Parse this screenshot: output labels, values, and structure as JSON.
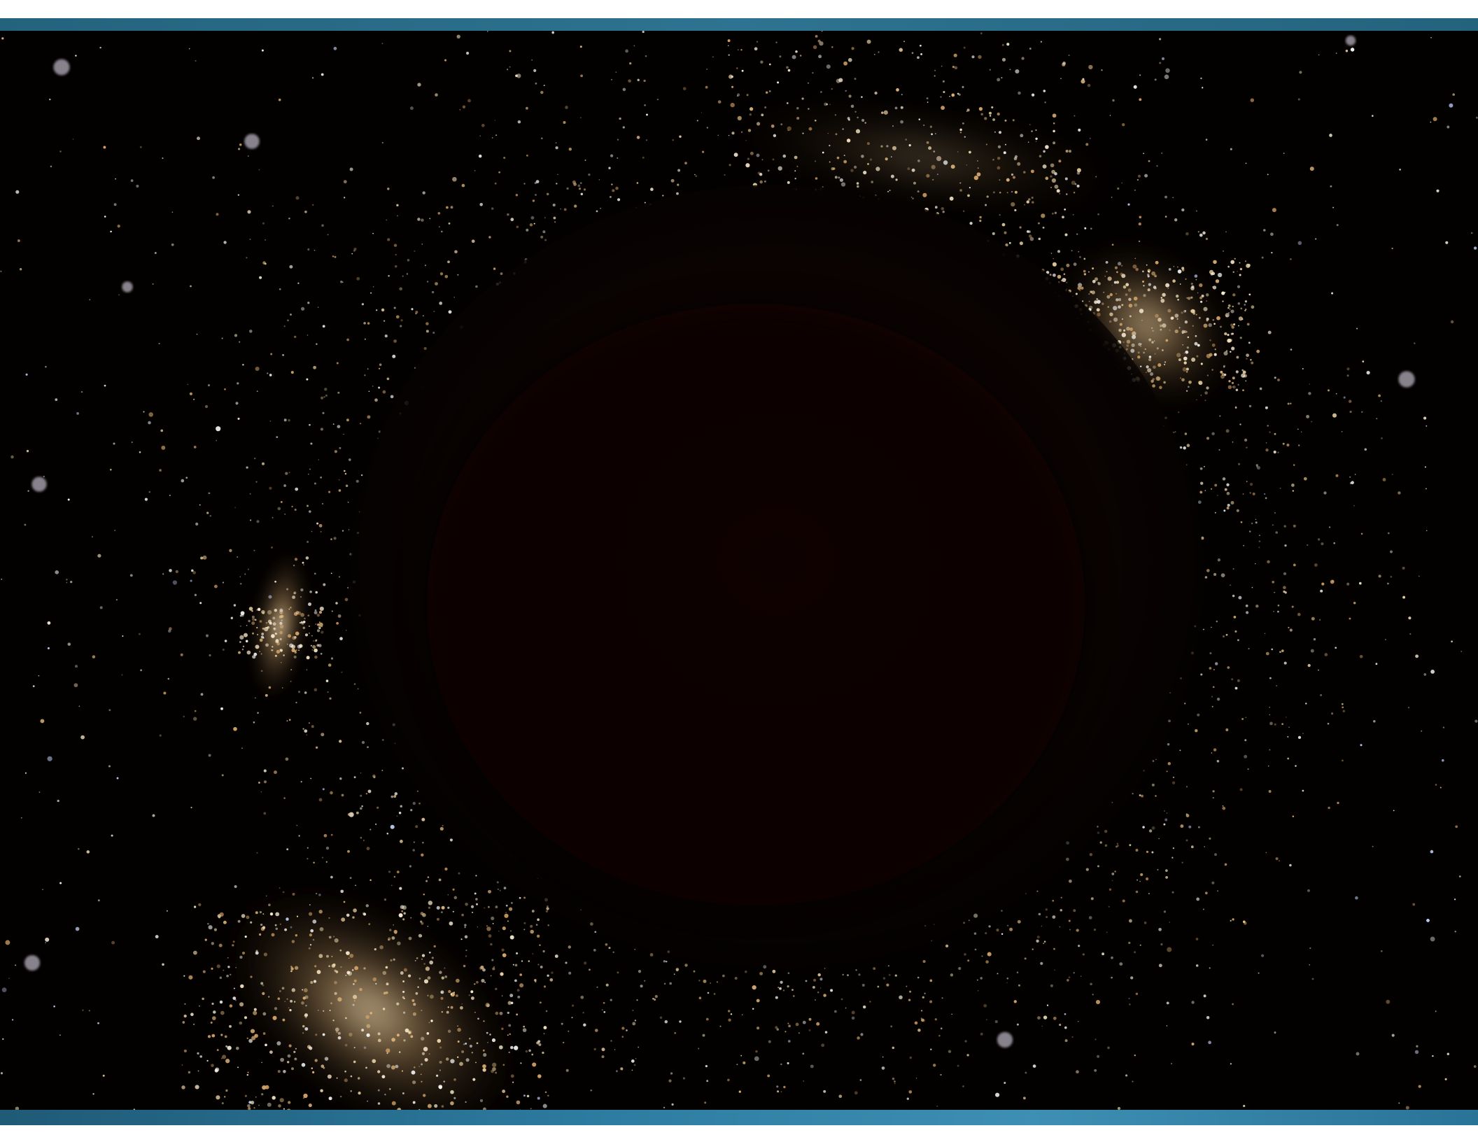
{
  "image": {
    "subject": "",
    "colors": {
      "top_bar": "#2a6d8a",
      "bottom_bar": "#2d7ba0",
      "background": "#030100",
      "glow": "#e7c79a",
      "disk": "#0f0503"
    }
  }
}
